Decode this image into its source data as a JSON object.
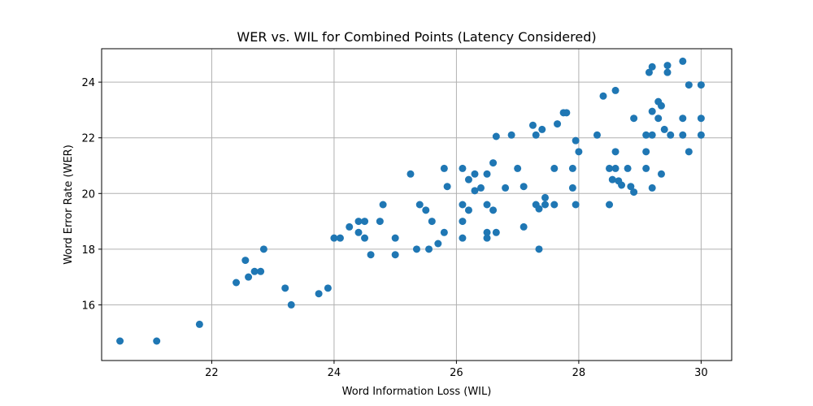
{
  "chart_data": {
    "type": "scatter",
    "title": "WER vs. WIL for Combined Points (Latency Considered)",
    "xlabel": "Word Information Loss (WIL)",
    "ylabel": "Word Error Rate (WER)",
    "xlim": [
      20.2,
      30.5
    ],
    "ylim": [
      14.0,
      25.2
    ],
    "xticks": [
      22,
      24,
      26,
      28,
      30
    ],
    "yticks": [
      16,
      18,
      20,
      22,
      24
    ],
    "grid": true,
    "marker_color": "#1f77b4",
    "points": [
      [
        20.5,
        14.7
      ],
      [
        21.1,
        14.7
      ],
      [
        21.8,
        15.3
      ],
      [
        22.4,
        16.8
      ],
      [
        22.55,
        17.6
      ],
      [
        22.6,
        17.0
      ],
      [
        22.7,
        17.2
      ],
      [
        22.8,
        17.2
      ],
      [
        22.85,
        18.0
      ],
      [
        23.2,
        16.6
      ],
      [
        23.3,
        16.0
      ],
      [
        23.75,
        16.4
      ],
      [
        23.9,
        16.6
      ],
      [
        24.0,
        18.4
      ],
      [
        24.1,
        18.4
      ],
      [
        24.25,
        18.8
      ],
      [
        24.4,
        18.6
      ],
      [
        24.4,
        19.0
      ],
      [
        24.5,
        19.0
      ],
      [
        24.5,
        18.4
      ],
      [
        24.6,
        17.8
      ],
      [
        24.75,
        19.0
      ],
      [
        24.8,
        19.6
      ],
      [
        25.0,
        18.4
      ],
      [
        25.0,
        17.8
      ],
      [
        25.25,
        20.7
      ],
      [
        25.35,
        18.0
      ],
      [
        25.4,
        19.6
      ],
      [
        25.5,
        19.4
      ],
      [
        25.55,
        18.0
      ],
      [
        25.6,
        19.0
      ],
      [
        25.7,
        18.2
      ],
      [
        25.8,
        20.9
      ],
      [
        25.8,
        18.6
      ],
      [
        25.85,
        20.25
      ],
      [
        26.1,
        19.6
      ],
      [
        26.1,
        20.9
      ],
      [
        26.1,
        19.0
      ],
      [
        26.1,
        18.4
      ],
      [
        26.2,
        20.5
      ],
      [
        26.2,
        19.4
      ],
      [
        26.3,
        20.7
      ],
      [
        26.3,
        20.1
      ],
      [
        26.4,
        20.2
      ],
      [
        26.5,
        20.7
      ],
      [
        26.5,
        19.6
      ],
      [
        26.5,
        18.6
      ],
      [
        26.5,
        18.4
      ],
      [
        26.6,
        21.1
      ],
      [
        26.6,
        19.4
      ],
      [
        26.65,
        22.05
      ],
      [
        26.65,
        18.6
      ],
      [
        26.8,
        20.2
      ],
      [
        26.9,
        22.1
      ],
      [
        27.0,
        20.9
      ],
      [
        27.1,
        20.25
      ],
      [
        27.1,
        18.8
      ],
      [
        27.25,
        22.45
      ],
      [
        27.3,
        22.1
      ],
      [
        27.3,
        19.6
      ],
      [
        27.35,
        19.45
      ],
      [
        27.35,
        18.0
      ],
      [
        27.4,
        22.3
      ],
      [
        27.45,
        19.85
      ],
      [
        27.45,
        19.6
      ],
      [
        27.6,
        20.9
      ],
      [
        27.6,
        19.6
      ],
      [
        27.65,
        22.5
      ],
      [
        27.75,
        22.9
      ],
      [
        27.8,
        22.9
      ],
      [
        27.9,
        20.9
      ],
      [
        27.9,
        20.2
      ],
      [
        27.95,
        21.9
      ],
      [
        27.95,
        19.6
      ],
      [
        28.0,
        21.5
      ],
      [
        28.3,
        22.1
      ],
      [
        28.4,
        23.5
      ],
      [
        28.5,
        20.9
      ],
      [
        28.5,
        19.6
      ],
      [
        28.55,
        20.5
      ],
      [
        28.6,
        23.7
      ],
      [
        28.6,
        21.5
      ],
      [
        28.6,
        20.9
      ],
      [
        28.65,
        20.45
      ],
      [
        28.7,
        20.3
      ],
      [
        28.8,
        20.9
      ],
      [
        28.85,
        20.25
      ],
      [
        28.9,
        22.7
      ],
      [
        28.9,
        20.05
      ],
      [
        29.1,
        22.1
      ],
      [
        29.1,
        21.5
      ],
      [
        29.1,
        20.9
      ],
      [
        29.15,
        24.35
      ],
      [
        29.2,
        24.55
      ],
      [
        29.2,
        22.95
      ],
      [
        29.2,
        22.1
      ],
      [
        29.2,
        20.2
      ],
      [
        29.3,
        23.3
      ],
      [
        29.3,
        22.7
      ],
      [
        29.35,
        23.15
      ],
      [
        29.35,
        20.7
      ],
      [
        29.4,
        22.3
      ],
      [
        29.45,
        24.35
      ],
      [
        29.45,
        24.6
      ],
      [
        29.5,
        22.1
      ],
      [
        29.7,
        24.75
      ],
      [
        29.7,
        22.7
      ],
      [
        29.7,
        22.1
      ],
      [
        29.8,
        23.9
      ],
      [
        29.8,
        21.5
      ],
      [
        30.0,
        23.9
      ],
      [
        30.0,
        22.7
      ],
      [
        30.0,
        22.1
      ]
    ]
  }
}
